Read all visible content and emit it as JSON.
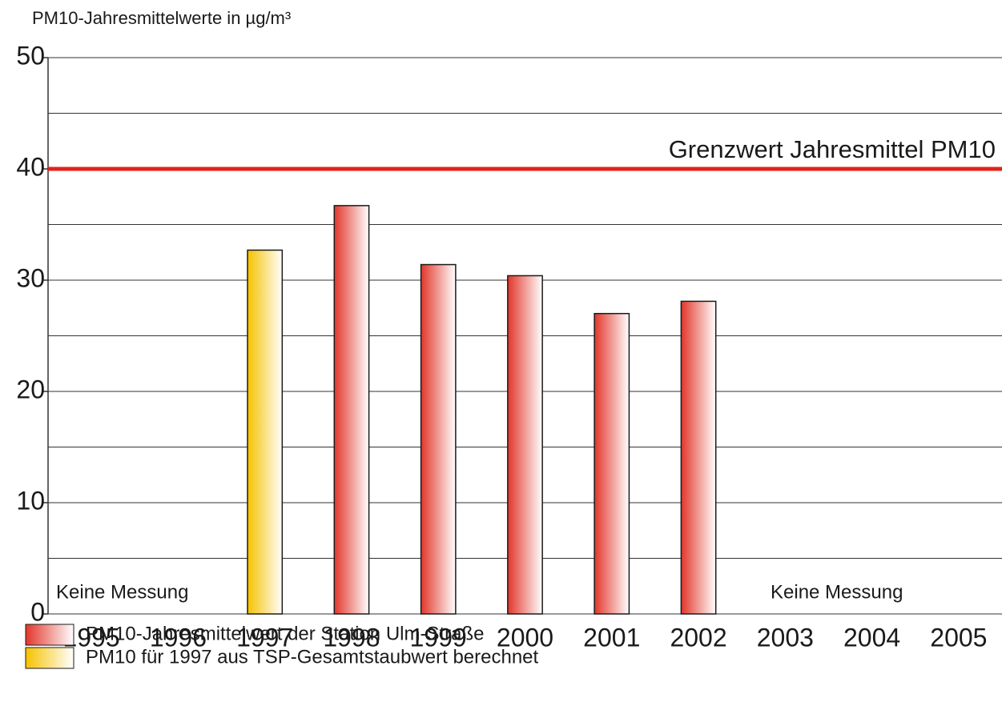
{
  "chart_data": {
    "type": "bar",
    "y_label": "PM10-Jahresmittelwerte in µg/m³",
    "categories": [
      "1995",
      "1996",
      "1997",
      "1998",
      "1999",
      "2000",
      "2001",
      "2002",
      "2003",
      "2004",
      "2005"
    ],
    "series": [
      {
        "name": "PM10-Jahresmittelwert der Station Ulm-Straße",
        "color": "#e2362a",
        "values": [
          null,
          null,
          null,
          36.7,
          31.4,
          30.4,
          27.0,
          28.1,
          null,
          null,
          null
        ]
      },
      {
        "name": "PM10 für 1997 aus TSP-Gesamtstaubwert berechnet",
        "color": "#f5c200",
        "values": [
          null,
          null,
          32.7,
          null,
          null,
          null,
          null,
          null,
          null,
          null,
          null
        ]
      }
    ],
    "ylim": [
      0,
      50
    ],
    "yticks": [
      0,
      10,
      20,
      30,
      40,
      50
    ],
    "minor_yticks": [
      5,
      15,
      25,
      35,
      45
    ],
    "grid": true,
    "limit_line": {
      "value": 40,
      "label": "Grenzwert Jahresmittel PM10",
      "color": "#e2231a"
    },
    "annotations": [
      "Keine Messung",
      "Keine Messung"
    ]
  }
}
